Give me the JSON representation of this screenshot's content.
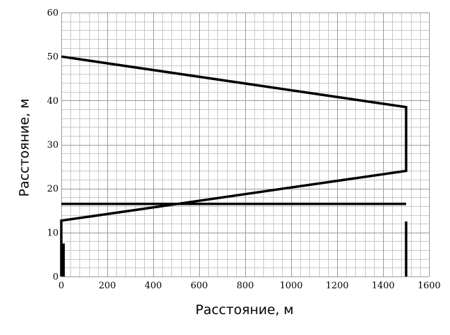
{
  "chart_data": {
    "type": "line",
    "title": "",
    "xlabel": "Расстояние, м",
    "ylabel": "Расстояние, м",
    "xlim": [
      0,
      1600
    ],
    "ylim": [
      0,
      60
    ],
    "grid": true,
    "x_ticks": [
      0,
      200,
      400,
      600,
      800,
      1000,
      1200,
      1400,
      1600
    ],
    "y_ticks": [
      0,
      10,
      20,
      30,
      40,
      50,
      60
    ],
    "series": [
      {
        "values": [
          {
            "x": 0,
            "y": 50
          },
          {
            "x": 1500,
            "y": 38.5
          },
          {
            "x": 1500,
            "y": 24
          },
          {
            "x": 0,
            "y": 12.7
          },
          {
            "x": 0,
            "y": 0
          }
        ]
      },
      {
        "values": [
          {
            "x": 0,
            "y": 16.5
          },
          {
            "x": 1500,
            "y": 16.5
          }
        ]
      },
      {
        "values": [
          {
            "x": 10,
            "y": 7.5
          },
          {
            "x": 10,
            "y": 0
          }
        ]
      },
      {
        "values": [
          {
            "x": 1500,
            "y": 12.5
          },
          {
            "x": 1500,
            "y": 0
          }
        ]
      }
    ]
  }
}
